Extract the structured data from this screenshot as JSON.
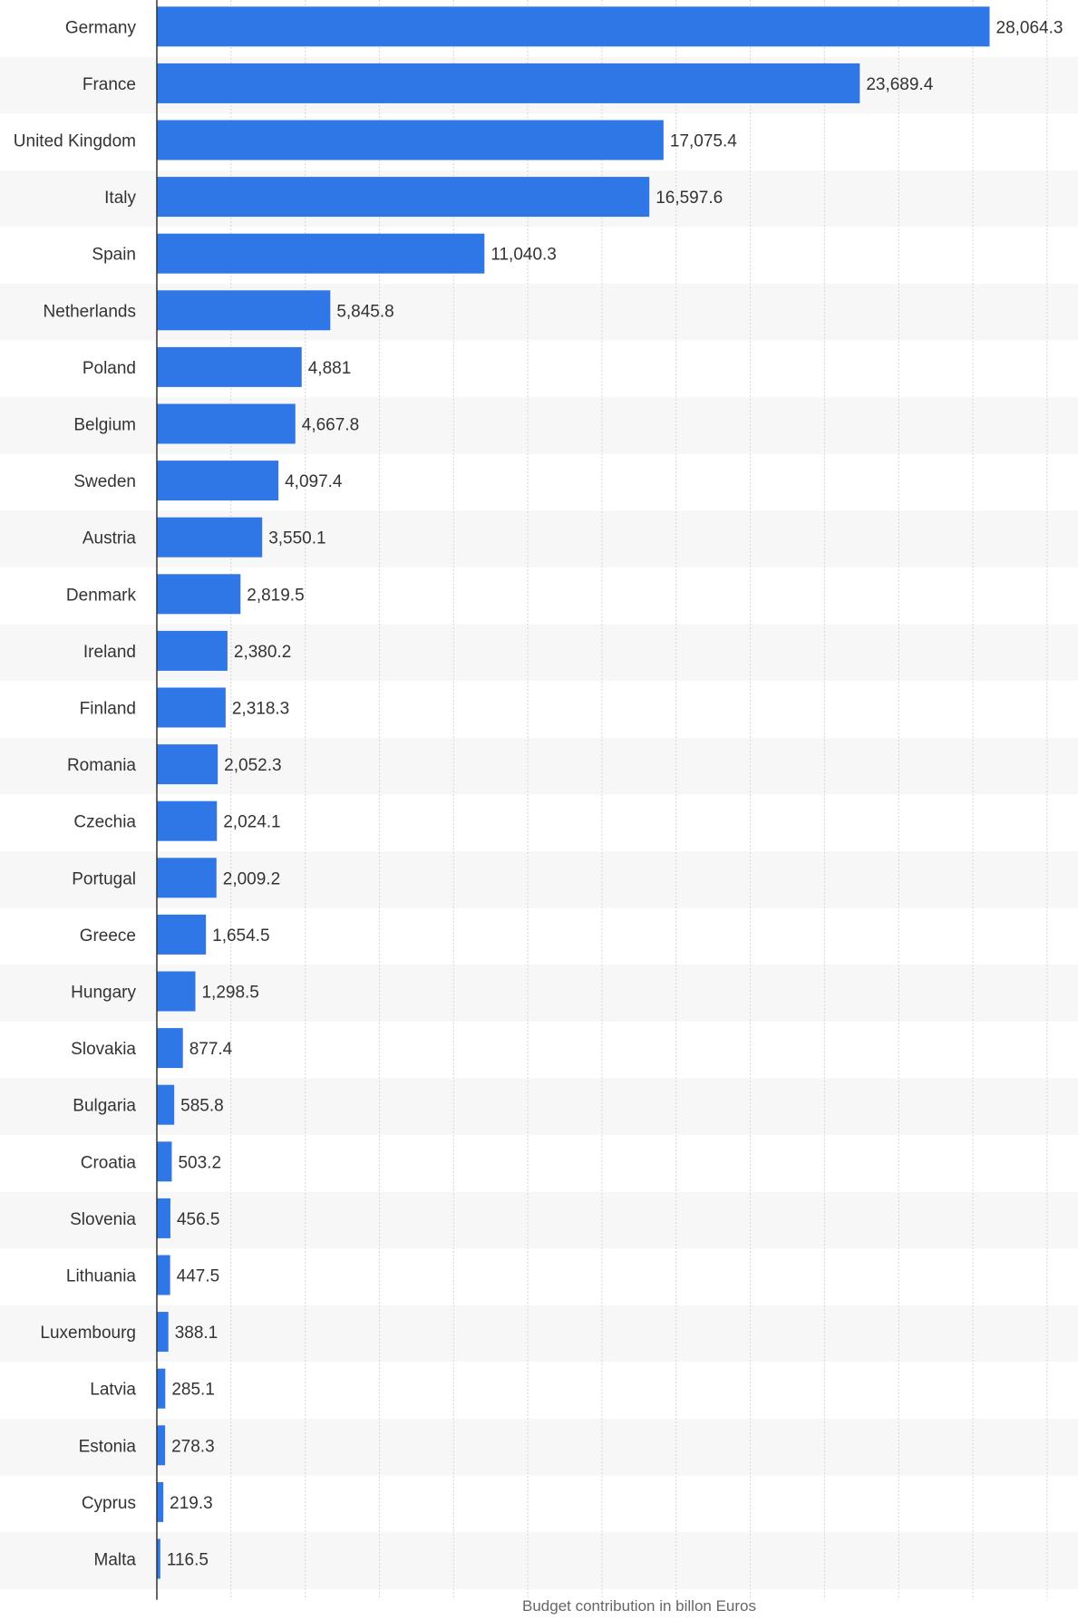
{
  "chart_data": {
    "type": "bar",
    "orientation": "horizontal",
    "categories": [
      "Germany",
      "France",
      "United Kingdom",
      "Italy",
      "Spain",
      "Netherlands",
      "Poland",
      "Belgium",
      "Sweden",
      "Austria",
      "Denmark",
      "Ireland",
      "Finland",
      "Romania",
      "Czechia",
      "Portugal",
      "Greece",
      "Hungary",
      "Slovakia",
      "Bulgaria",
      "Croatia",
      "Slovenia",
      "Lithuania",
      "Luxembourg",
      "Latvia",
      "Estonia",
      "Cyprus",
      "Malta"
    ],
    "values": [
      28064.3,
      23689.4,
      17075.4,
      16597.6,
      11040.3,
      5845.8,
      4881,
      4667.8,
      4097.4,
      3550.1,
      2819.5,
      2380.2,
      2318.3,
      2052.3,
      2024.1,
      2009.2,
      1654.5,
      1298.5,
      877.4,
      585.8,
      503.2,
      456.5,
      447.5,
      388.1,
      285.1,
      278.3,
      219.3,
      116.5
    ],
    "value_labels": [
      "28,064.3",
      "23,689.4",
      "17,075.4",
      "16,597.6",
      "11,040.3",
      "5,845.8",
      "4,881",
      "4,667.8",
      "4,097.4",
      "3,550.1",
      "2,819.5",
      "2,380.2",
      "2,318.3",
      "2,052.3",
      "2,024.1",
      "2,009.2",
      "1,654.5",
      "1,298.5",
      "877.4",
      "585.8",
      "503.2",
      "456.5",
      "447.5",
      "388.1",
      "285.1",
      "278.3",
      "219.3",
      "116.5"
    ],
    "xlabel": "Budget contribution in billon Euros",
    "xlim": [
      0,
      30000
    ],
    "grid": true,
    "bar_color": "#2f76e6",
    "stripe_color": "#f7f7f7",
    "grid_color": "#d6d6d6"
  }
}
